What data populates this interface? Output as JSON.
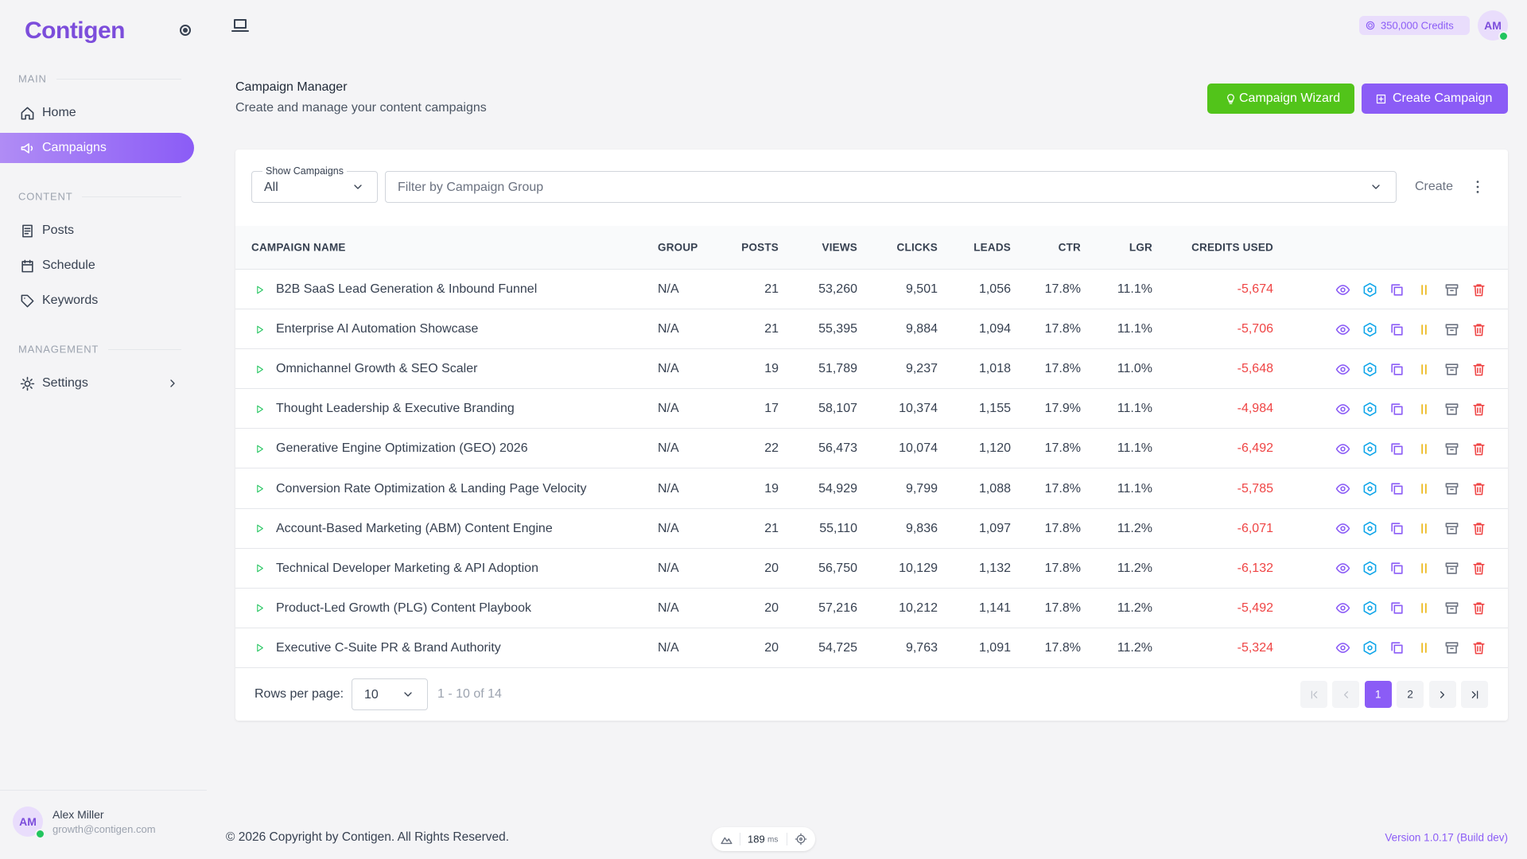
{
  "sidebar": {
    "logo": "Contigen",
    "sections": [
      {
        "label": "MAIN",
        "items": [
          "Home",
          "Campaigns"
        ]
      },
      {
        "label": "CONTENT",
        "items": [
          "Posts",
          "Schedule",
          "Keywords"
        ]
      },
      {
        "label": "MANAGEMENT",
        "items": [
          "Settings"
        ]
      }
    ],
    "user": {
      "initials": "AM",
      "name": "Alex Miller",
      "email": "growth@contigen.com"
    }
  },
  "topbar": {
    "credits": "350,000 Credits",
    "avatar": "AM"
  },
  "page": {
    "title": "Campaign Manager",
    "subtitle": "Create and manage your content campaigns",
    "buttons": [
      "Campaign Wizard",
      "Create Campaign"
    ]
  },
  "filters": {
    "show_label": "Show Campaigns",
    "show_value": "All",
    "group_placeholder": "Filter by Campaign Group",
    "create": "Create"
  },
  "table": {
    "columns": [
      "CAMPAIGN NAME",
      "GROUP",
      "POSTS",
      "VIEWS",
      "CLICKS",
      "LEADS",
      "CTR",
      "LGR",
      "CREDITS USED"
    ],
    "rows": [
      [
        "B2B SaaS Lead Generation & Inbound Funnel",
        "N/A",
        "21",
        "53,260",
        "9,501",
        "1,056",
        "17.8%",
        "11.1%",
        "-5,674"
      ],
      [
        "Enterprise AI Automation Showcase",
        "N/A",
        "21",
        "55,395",
        "9,884",
        "1,094",
        "17.8%",
        "11.1%",
        "-5,706"
      ],
      [
        "Omnichannel Growth & SEO Scaler",
        "N/A",
        "19",
        "51,789",
        "9,237",
        "1,018",
        "17.8%",
        "11.0%",
        "-5,648"
      ],
      [
        "Thought Leadership & Executive Branding",
        "N/A",
        "17",
        "58,107",
        "10,374",
        "1,155",
        "17.9%",
        "11.1%",
        "-4,984"
      ],
      [
        "Generative Engine Optimization (GEO) 2026",
        "N/A",
        "22",
        "56,473",
        "10,074",
        "1,120",
        "17.8%",
        "11.1%",
        "-6,492"
      ],
      [
        "Conversion Rate Optimization & Landing Page Velocity",
        "N/A",
        "19",
        "54,929",
        "9,799",
        "1,088",
        "17.8%",
        "11.1%",
        "-5,785"
      ],
      [
        "Account-Based Marketing (ABM) Content Engine",
        "N/A",
        "21",
        "55,110",
        "9,836",
        "1,097",
        "17.8%",
        "11.2%",
        "-6,071"
      ],
      [
        "Technical Developer Marketing & API Adoption",
        "N/A",
        "20",
        "56,750",
        "10,129",
        "1,132",
        "17.8%",
        "11.2%",
        "-6,132"
      ],
      [
        "Product-Led Growth (PLG) Content Playbook",
        "N/A",
        "20",
        "57,216",
        "10,212",
        "1,141",
        "17.8%",
        "11.2%",
        "-5,492"
      ],
      [
        "Executive C-Suite PR & Brand Authority",
        "N/A",
        "20",
        "54,725",
        "9,763",
        "1,091",
        "17.8%",
        "11.2%",
        "-5,324"
      ]
    ]
  },
  "pagination": {
    "rows_label": "Rows per page:",
    "rows_value": "10",
    "range": "1 - 10 of 14",
    "pages": [
      "1",
      "2"
    ]
  },
  "footer": {
    "copyright": "© 2026 Copyright by Contigen. All Rights Reserved.",
    "latency": "189",
    "latency_unit": "ms",
    "version": "Version 1.0.17 (Build dev)"
  }
}
